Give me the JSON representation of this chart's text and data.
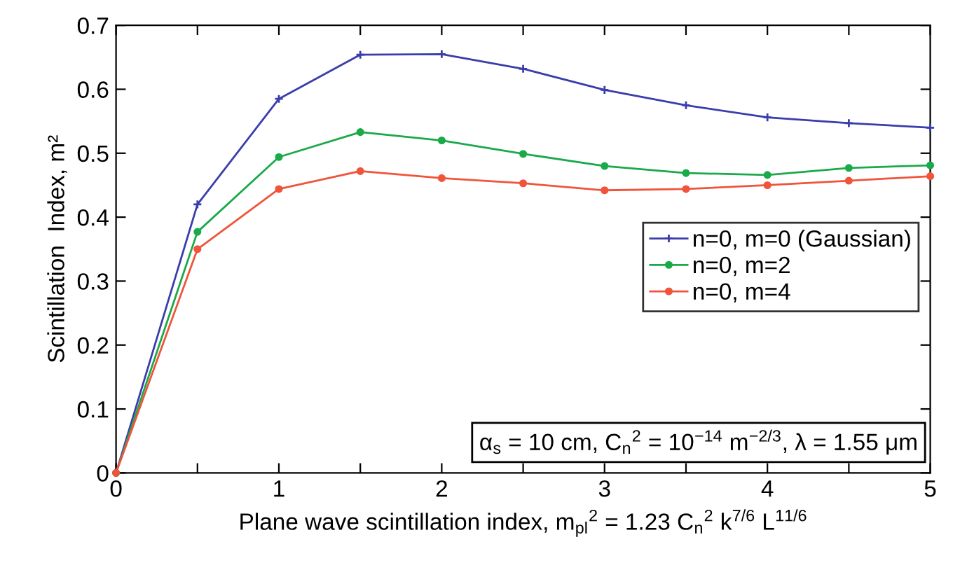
{
  "chart_data": {
    "type": "line",
    "xlabel": "Plane wave scintillation index, m$_{pl}$$^{2}$ = 1.23 C$_{n}$$^{2}$ k$^{7/6}$ L$^{11/6}$",
    "ylabel": "Scintillation  Index, m²",
    "x": [
      0,
      0.5,
      1,
      1.5,
      2,
      2.5,
      3,
      3.5,
      4,
      4.5,
      5
    ],
    "series": [
      {
        "name": "n=0, m=0 (Gaussian)",
        "color": "#3a3dab",
        "marker": "cross",
        "values": [
          0,
          0.42,
          0.585,
          0.654,
          0.655,
          0.632,
          0.599,
          0.575,
          0.556,
          0.547,
          0.54
        ]
      },
      {
        "name": "n=0, m=2",
        "color": "#1aaa4a",
        "marker": "circle",
        "values": [
          0,
          0.377,
          0.494,
          0.533,
          0.52,
          0.499,
          0.48,
          0.469,
          0.466,
          0.477,
          0.481
        ]
      },
      {
        "name": "n=0, m=4",
        "color": "#f0543a",
        "marker": "circle",
        "values": [
          0,
          0.35,
          0.444,
          0.472,
          0.461,
          0.453,
          0.442,
          0.444,
          0.45,
          0.457,
          0.464
        ]
      }
    ],
    "xlim": [
      0,
      5
    ],
    "xticks": [
      0,
      {
        "value": 0.5,
        "label": null
      },
      1,
      {
        "value": 1.5,
        "label": null
      },
      2,
      {
        "value": 2.5,
        "label": null
      },
      3,
      {
        "value": 3.5,
        "label": null
      },
      4,
      {
        "value": 4.5,
        "label": null
      },
      5
    ],
    "ylim": [
      0,
      0.7
    ],
    "yticks": [
      0,
      0.1,
      0.2,
      0.3,
      0.4,
      0.5,
      0.6,
      0.7
    ],
    "annotations": [
      "α$_{s}$ = 10 cm, C$_{n}$$^{2}$ = 10$^{−14}$ m$^{−2/3}$, λ = 1.55 μm"
    ],
    "legend": "right",
    "grid": false,
    "line_style": "solid"
  }
}
